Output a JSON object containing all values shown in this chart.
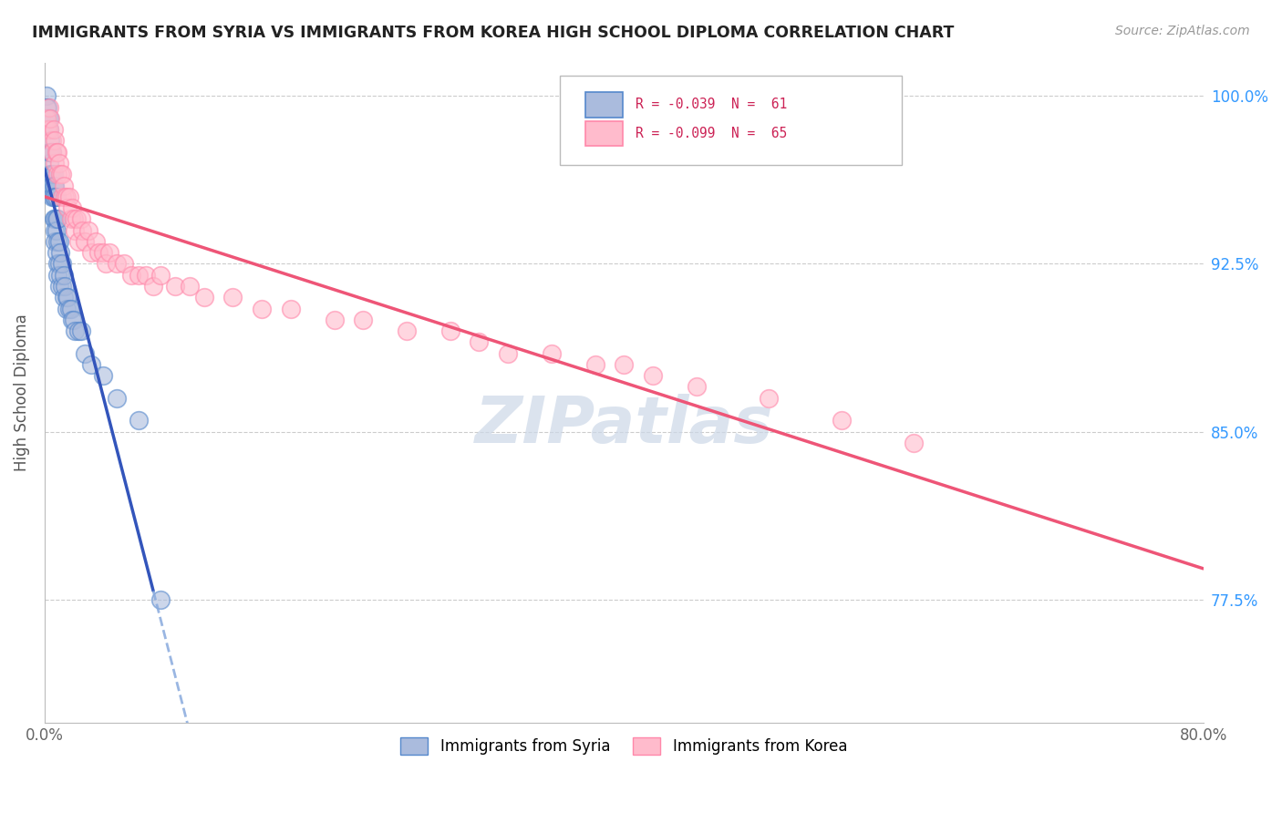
{
  "title": "IMMIGRANTS FROM SYRIA VS IMMIGRANTS FROM KOREA HIGH SCHOOL DIPLOMA CORRELATION CHART",
  "source": "Source: ZipAtlas.com",
  "ylabel": "High School Diploma",
  "ytick_labels": [
    "100.0%",
    "92.5%",
    "85.0%",
    "77.5%"
  ],
  "ytick_values": [
    1.0,
    0.925,
    0.85,
    0.775
  ],
  "legend_label_syria": "Immigrants from Syria",
  "legend_label_korea": "Immigrants from Korea",
  "color_syria_fill": "#aabbdd",
  "color_syria_edge": "#5588cc",
  "color_korea_fill": "#ffbbcc",
  "color_korea_edge": "#ff88aa",
  "trendline_syria_color": "#3355bb",
  "trendline_korea_color": "#ee5577",
  "trendline_dashed_color": "#88aadd",
  "watermark_color": "#ccd8e8",
  "syria_x": [
    0.001,
    0.001,
    0.001,
    0.002,
    0.002,
    0.002,
    0.003,
    0.003,
    0.003,
    0.003,
    0.004,
    0.004,
    0.004,
    0.004,
    0.005,
    0.005,
    0.005,
    0.005,
    0.006,
    0.006,
    0.006,
    0.006,
    0.007,
    0.007,
    0.007,
    0.007,
    0.007,
    0.008,
    0.008,
    0.008,
    0.008,
    0.009,
    0.009,
    0.009,
    0.009,
    0.01,
    0.01,
    0.01,
    0.011,
    0.011,
    0.012,
    0.012,
    0.013,
    0.013,
    0.014,
    0.015,
    0.015,
    0.016,
    0.017,
    0.018,
    0.019,
    0.02,
    0.021,
    0.023,
    0.025,
    0.028,
    0.032,
    0.04,
    0.05,
    0.065,
    0.08
  ],
  "syria_y": [
    1.0,
    0.995,
    0.99,
    0.995,
    0.99,
    0.985,
    0.99,
    0.985,
    0.975,
    0.97,
    0.98,
    0.975,
    0.965,
    0.96,
    0.975,
    0.965,
    0.96,
    0.955,
    0.965,
    0.96,
    0.955,
    0.945,
    0.96,
    0.955,
    0.945,
    0.94,
    0.935,
    0.955,
    0.945,
    0.94,
    0.93,
    0.945,
    0.935,
    0.925,
    0.92,
    0.935,
    0.925,
    0.915,
    0.93,
    0.92,
    0.925,
    0.915,
    0.92,
    0.91,
    0.915,
    0.91,
    0.905,
    0.91,
    0.905,
    0.905,
    0.9,
    0.9,
    0.895,
    0.895,
    0.895,
    0.885,
    0.88,
    0.875,
    0.865,
    0.855,
    0.775
  ],
  "korea_x": [
    0.001,
    0.002,
    0.003,
    0.003,
    0.004,
    0.005,
    0.005,
    0.006,
    0.007,
    0.007,
    0.008,
    0.009,
    0.009,
    0.01,
    0.011,
    0.012,
    0.012,
    0.013,
    0.014,
    0.015,
    0.016,
    0.017,
    0.018,
    0.019,
    0.02,
    0.021,
    0.022,
    0.023,
    0.025,
    0.026,
    0.028,
    0.03,
    0.032,
    0.035,
    0.037,
    0.04,
    0.042,
    0.045,
    0.05,
    0.055,
    0.06,
    0.065,
    0.07,
    0.075,
    0.08,
    0.09,
    0.1,
    0.11,
    0.13,
    0.15,
    0.17,
    0.2,
    0.22,
    0.25,
    0.28,
    0.3,
    0.32,
    0.35,
    0.38,
    0.4,
    0.42,
    0.45,
    0.5,
    0.55,
    0.6
  ],
  "korea_y": [
    0.99,
    0.985,
    0.995,
    0.985,
    0.99,
    0.98,
    0.975,
    0.985,
    0.98,
    0.97,
    0.975,
    0.975,
    0.965,
    0.97,
    0.965,
    0.965,
    0.955,
    0.96,
    0.955,
    0.955,
    0.95,
    0.955,
    0.945,
    0.95,
    0.945,
    0.94,
    0.945,
    0.935,
    0.945,
    0.94,
    0.935,
    0.94,
    0.93,
    0.935,
    0.93,
    0.93,
    0.925,
    0.93,
    0.925,
    0.925,
    0.92,
    0.92,
    0.92,
    0.915,
    0.92,
    0.915,
    0.915,
    0.91,
    0.91,
    0.905,
    0.905,
    0.9,
    0.9,
    0.895,
    0.895,
    0.89,
    0.885,
    0.885,
    0.88,
    0.88,
    0.875,
    0.87,
    0.865,
    0.855,
    0.845
  ],
  "xlim": [
    0.0,
    0.8
  ],
  "ylim": [
    0.72,
    1.015
  ],
  "xtick_positions": [
    0.0,
    0.8
  ],
  "xtick_labels": [
    "0.0%",
    "80.0%"
  ]
}
